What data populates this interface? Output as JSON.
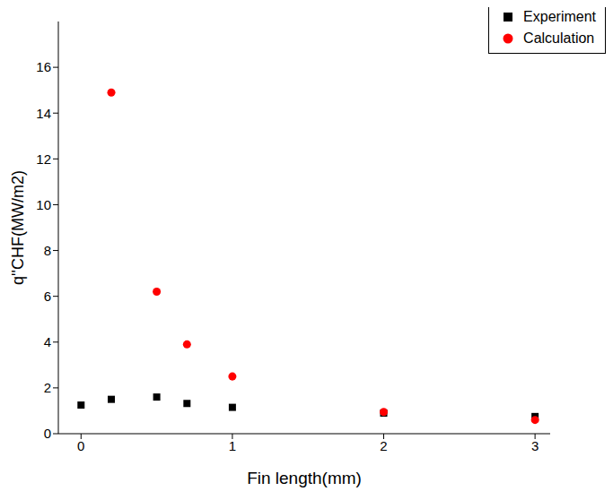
{
  "chart_data": {
    "type": "scatter",
    "x_label": "Fin length(mm)",
    "y_label": "q''CHF(MW/m2)",
    "xlim": [
      -0.15,
      3.1
    ],
    "xticks": [
      0,
      1,
      2,
      3
    ],
    "ylim": [
      0,
      18
    ],
    "yticks": [
      0,
      2,
      4,
      6,
      8,
      10,
      12,
      14,
      16
    ],
    "legend": "top-right",
    "grid": false,
    "series": [
      {
        "name": "Experiment",
        "color": "#000000",
        "marker": "square",
        "x": [
          0,
          0.2,
          0.5,
          0.7,
          1,
          2,
          3
        ],
        "values": [
          1.25,
          1.5,
          1.6,
          1.32,
          1.15,
          0.9,
          0.75
        ]
      },
      {
        "name": "Calculation",
        "color": "#ff0000",
        "marker": "circle",
        "x": [
          0.2,
          0.5,
          0.7,
          1,
          2,
          3
        ],
        "values": [
          14.9,
          6.2,
          3.9,
          2.5,
          0.95,
          0.6
        ]
      }
    ]
  }
}
